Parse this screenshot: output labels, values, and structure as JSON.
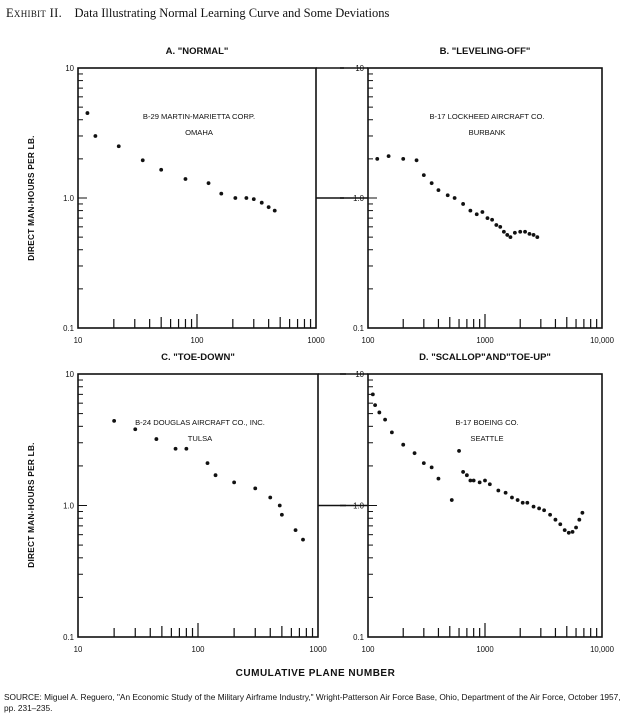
{
  "figure": {
    "exhibit_label": "Exhibit II.",
    "title": "Data Illustrating Normal Learning Curve and Some Deviations",
    "ylabel": "DIRECT MAN-HOURS PER LB.",
    "xlabel": "CUMULATIVE PLANE NUMBER",
    "source": "SOURCE: Miguel A. Reguero, \"An Economic Study of the Military Airframe Industry,\" Wright-Patterson Air Force Base, Ohio, Department of the Air Force, October 1957, pp. 231–235."
  },
  "chart_data": [
    {
      "type": "scatter",
      "title": "A. \"NORMAL\"",
      "annotation": [
        "B-29 MARTIN-MARIETTA CORP.",
        "OMAHA"
      ],
      "xscale": "log",
      "yscale": "log",
      "xlim": [
        10,
        1000
      ],
      "ylim": [
        0.1,
        10
      ],
      "xticks": [
        "10",
        "100",
        "1000"
      ],
      "yticks": [
        "0.1",
        "1.0",
        "10"
      ],
      "x": [
        12,
        14,
        22,
        35,
        50,
        80,
        125,
        160,
        210,
        260,
        300,
        350,
        400,
        450
      ],
      "y": [
        4.5,
        3.0,
        2.5,
        1.95,
        1.65,
        1.4,
        1.3,
        1.08,
        1.0,
        1.0,
        0.98,
        0.92,
        0.85,
        0.8
      ]
    },
    {
      "type": "scatter",
      "title": "B. \"LEVELING-OFF\"",
      "annotation": [
        "B-17 LOCKHEED AIRCRAFT CO.",
        "BURBANK"
      ],
      "xscale": "log",
      "yscale": "log",
      "xlim": [
        100,
        10000
      ],
      "ylim": [
        0.1,
        10
      ],
      "xticks": [
        "100",
        "1000",
        "10,000"
      ],
      "yticks": [
        "0.1",
        "1.0",
        "10"
      ],
      "x": [
        120,
        150,
        200,
        260,
        300,
        350,
        400,
        480,
        550,
        650,
        750,
        850,
        950,
        1050,
        1150,
        1250,
        1350,
        1450,
        1550,
        1650,
        1800,
        2000,
        2200,
        2400,
        2600,
        2800
      ],
      "y": [
        2.0,
        2.1,
        2.0,
        1.95,
        1.5,
        1.3,
        1.15,
        1.05,
        1.0,
        0.9,
        0.8,
        0.75,
        0.78,
        0.7,
        0.68,
        0.62,
        0.6,
        0.55,
        0.52,
        0.5,
        0.54,
        0.55,
        0.55,
        0.53,
        0.52,
        0.5
      ]
    },
    {
      "type": "scatter",
      "title": "C. \"TOE-DOWN\"",
      "annotation": [
        "B-24 DOUGLAS AIRCRAFT CO., INC.",
        "TULSA"
      ],
      "xscale": "log",
      "yscale": "log",
      "xlim": [
        10,
        1000
      ],
      "ylim": [
        0.1,
        10
      ],
      "xticks": [
        "10",
        "100",
        "1000"
      ],
      "yticks": [
        "0.1",
        "1.0",
        "10"
      ],
      "x": [
        20,
        30,
        45,
        65,
        80,
        120,
        140,
        200,
        300,
        400,
        480,
        500,
        650,
        750
      ],
      "y": [
        4.4,
        3.8,
        3.2,
        2.7,
        2.7,
        2.1,
        1.7,
        1.5,
        1.35,
        1.15,
        1.0,
        0.85,
        0.65,
        0.55
      ]
    },
    {
      "type": "scatter",
      "title": "D. \"SCALLOP\"AND\"TOE-UP\"",
      "annotation": [
        "B-17 BOEING CO.",
        "SEATTLE"
      ],
      "xscale": "log",
      "yscale": "log",
      "xlim": [
        100,
        10000
      ],
      "ylim": [
        0.1,
        10
      ],
      "xticks": [
        "100",
        "1000",
        "10,000"
      ],
      "yticks": [
        "0.1",
        "1.0",
        "10"
      ],
      "x": [
        110,
        115,
        125,
        140,
        160,
        200,
        250,
        300,
        350,
        400,
        520,
        600,
        650,
        700,
        750,
        800,
        900,
        1000,
        1100,
        1300,
        1500,
        1700,
        1900,
        2100,
        2300,
        2600,
        2900,
        3200,
        3600,
        4000,
        4400,
        4800,
        5200,
        5600,
        6000,
        6400,
        6800
      ],
      "y": [
        7.0,
        5.8,
        5.1,
        4.5,
        3.6,
        2.9,
        2.5,
        2.1,
        1.95,
        1.6,
        1.1,
        2.6,
        1.8,
        1.7,
        1.55,
        1.55,
        1.5,
        1.55,
        1.45,
        1.3,
        1.25,
        1.15,
        1.1,
        1.05,
        1.05,
        0.98,
        0.95,
        0.92,
        0.85,
        0.78,
        0.72,
        0.65,
        0.62,
        0.63,
        0.68,
        0.78,
        0.88
      ]
    }
  ]
}
